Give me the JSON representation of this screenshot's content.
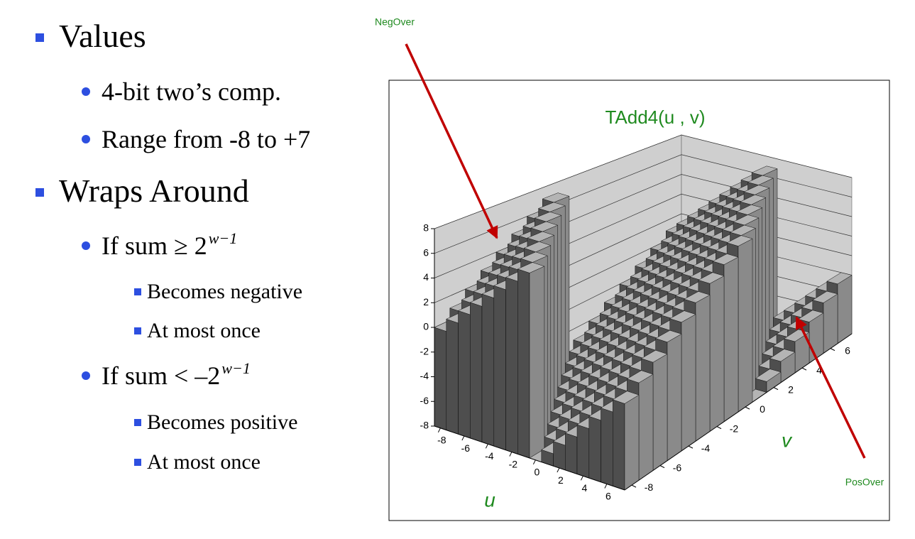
{
  "slide": {
    "bullets": [
      {
        "text": "Values",
        "items": [
          {
            "text": "4-bit two’s comp."
          },
          {
            "text": "Range from -8 to +7"
          }
        ]
      },
      {
        "text": "Wraps Around",
        "items": [
          {
            "text": "If sum ≥ 2",
            "sup": "w−1",
            "items": [
              {
                "text": "Becomes negative"
              },
              {
                "text": "At most once"
              }
            ]
          },
          {
            "text": "If sum < –2",
            "sup": "w−1",
            "items": [
              {
                "text": "Becomes positive"
              },
              {
                "text": "At most once"
              }
            ]
          }
        ]
      }
    ]
  },
  "chart_data": {
    "type": "bar3d",
    "title": "TAdd4(u , v)",
    "x_label": "u",
    "y_label": "v",
    "annotations": [
      "NegOver",
      "PosOver"
    ],
    "x": [
      -8,
      -7,
      -6,
      -5,
      -4,
      -3,
      -2,
      -1,
      0,
      1,
      2,
      3,
      4,
      5,
      6,
      7
    ],
    "y": [
      -8,
      -7,
      -6,
      -5,
      -4,
      -3,
      -2,
      -1,
      0,
      1,
      2,
      3,
      4,
      5,
      6,
      7
    ],
    "z": [
      [
        0,
        1,
        2,
        3,
        4,
        5,
        6,
        7,
        -8,
        -7,
        -6,
        -5,
        -4,
        -3,
        -2,
        -1
      ],
      [
        1,
        2,
        3,
        4,
        5,
        6,
        7,
        -8,
        -7,
        -6,
        -5,
        -4,
        -3,
        -2,
        -1,
        0
      ],
      [
        2,
        3,
        4,
        5,
        6,
        7,
        -8,
        -7,
        -6,
        -5,
        -4,
        -3,
        -2,
        -1,
        0,
        1
      ],
      [
        3,
        4,
        5,
        6,
        7,
        -8,
        -7,
        -6,
        -5,
        -4,
        -3,
        -2,
        -1,
        0,
        1,
        2
      ],
      [
        4,
        5,
        6,
        7,
        -8,
        -7,
        -6,
        -5,
        -4,
        -3,
        -2,
        -1,
        0,
        1,
        2,
        3
      ],
      [
        5,
        6,
        7,
        -8,
        -7,
        -6,
        -5,
        -4,
        -3,
        -2,
        -1,
        0,
        1,
        2,
        3,
        4
      ],
      [
        6,
        7,
        -8,
        -7,
        -6,
        -5,
        -4,
        -3,
        -2,
        -1,
        0,
        1,
        2,
        3,
        4,
        5
      ],
      [
        7,
        -8,
        -7,
        -6,
        -5,
        -4,
        -3,
        -2,
        -1,
        0,
        1,
        2,
        3,
        4,
        5,
        6
      ],
      [
        -8,
        -7,
        -6,
        -5,
        -4,
        -3,
        -2,
        -1,
        0,
        1,
        2,
        3,
        4,
        5,
        6,
        7
      ],
      [
        -7,
        -6,
        -5,
        -4,
        -3,
        -2,
        -1,
        0,
        1,
        2,
        3,
        4,
        5,
        6,
        7,
        -8
      ],
      [
        -6,
        -5,
        -4,
        -3,
        -2,
        -1,
        0,
        1,
        2,
        3,
        4,
        5,
        6,
        7,
        -8,
        -7
      ],
      [
        -5,
        -4,
        -3,
        -2,
        -1,
        0,
        1,
        2,
        3,
        4,
        5,
        6,
        7,
        -8,
        -7,
        -6
      ],
      [
        -4,
        -3,
        -2,
        -1,
        0,
        1,
        2,
        3,
        4,
        5,
        6,
        7,
        -8,
        -7,
        -6,
        -5
      ],
      [
        -3,
        -2,
        -1,
        0,
        1,
        2,
        3,
        4,
        5,
        6,
        7,
        -8,
        -7,
        -6,
        -5,
        -4
      ],
      [
        -2,
        -1,
        0,
        1,
        2,
        3,
        4,
        5,
        6,
        7,
        -8,
        -7,
        -6,
        -5,
        -4,
        -3
      ],
      [
        -1,
        0,
        1,
        2,
        3,
        4,
        5,
        6,
        7,
        -8,
        -7,
        -6,
        -5,
        -4,
        -3,
        -2
      ]
    ],
    "xticks": [
      -8,
      -6,
      -4,
      -2,
      0,
      2,
      4,
      6
    ],
    "yticks": [
      -8,
      -6,
      -4,
      -2,
      0,
      2,
      4,
      6
    ],
    "zticks": [
      -8,
      -6,
      -4,
      -2,
      0,
      2,
      4,
      6,
      8
    ],
    "zlim": [
      -8,
      8
    ],
    "grid": true,
    "colors": {
      "top": "#b4b4b4",
      "front": "#4e4e4e",
      "side": "#8a8a8a",
      "wall": "#cfcfcf",
      "text": "#1f8a1f"
    }
  }
}
